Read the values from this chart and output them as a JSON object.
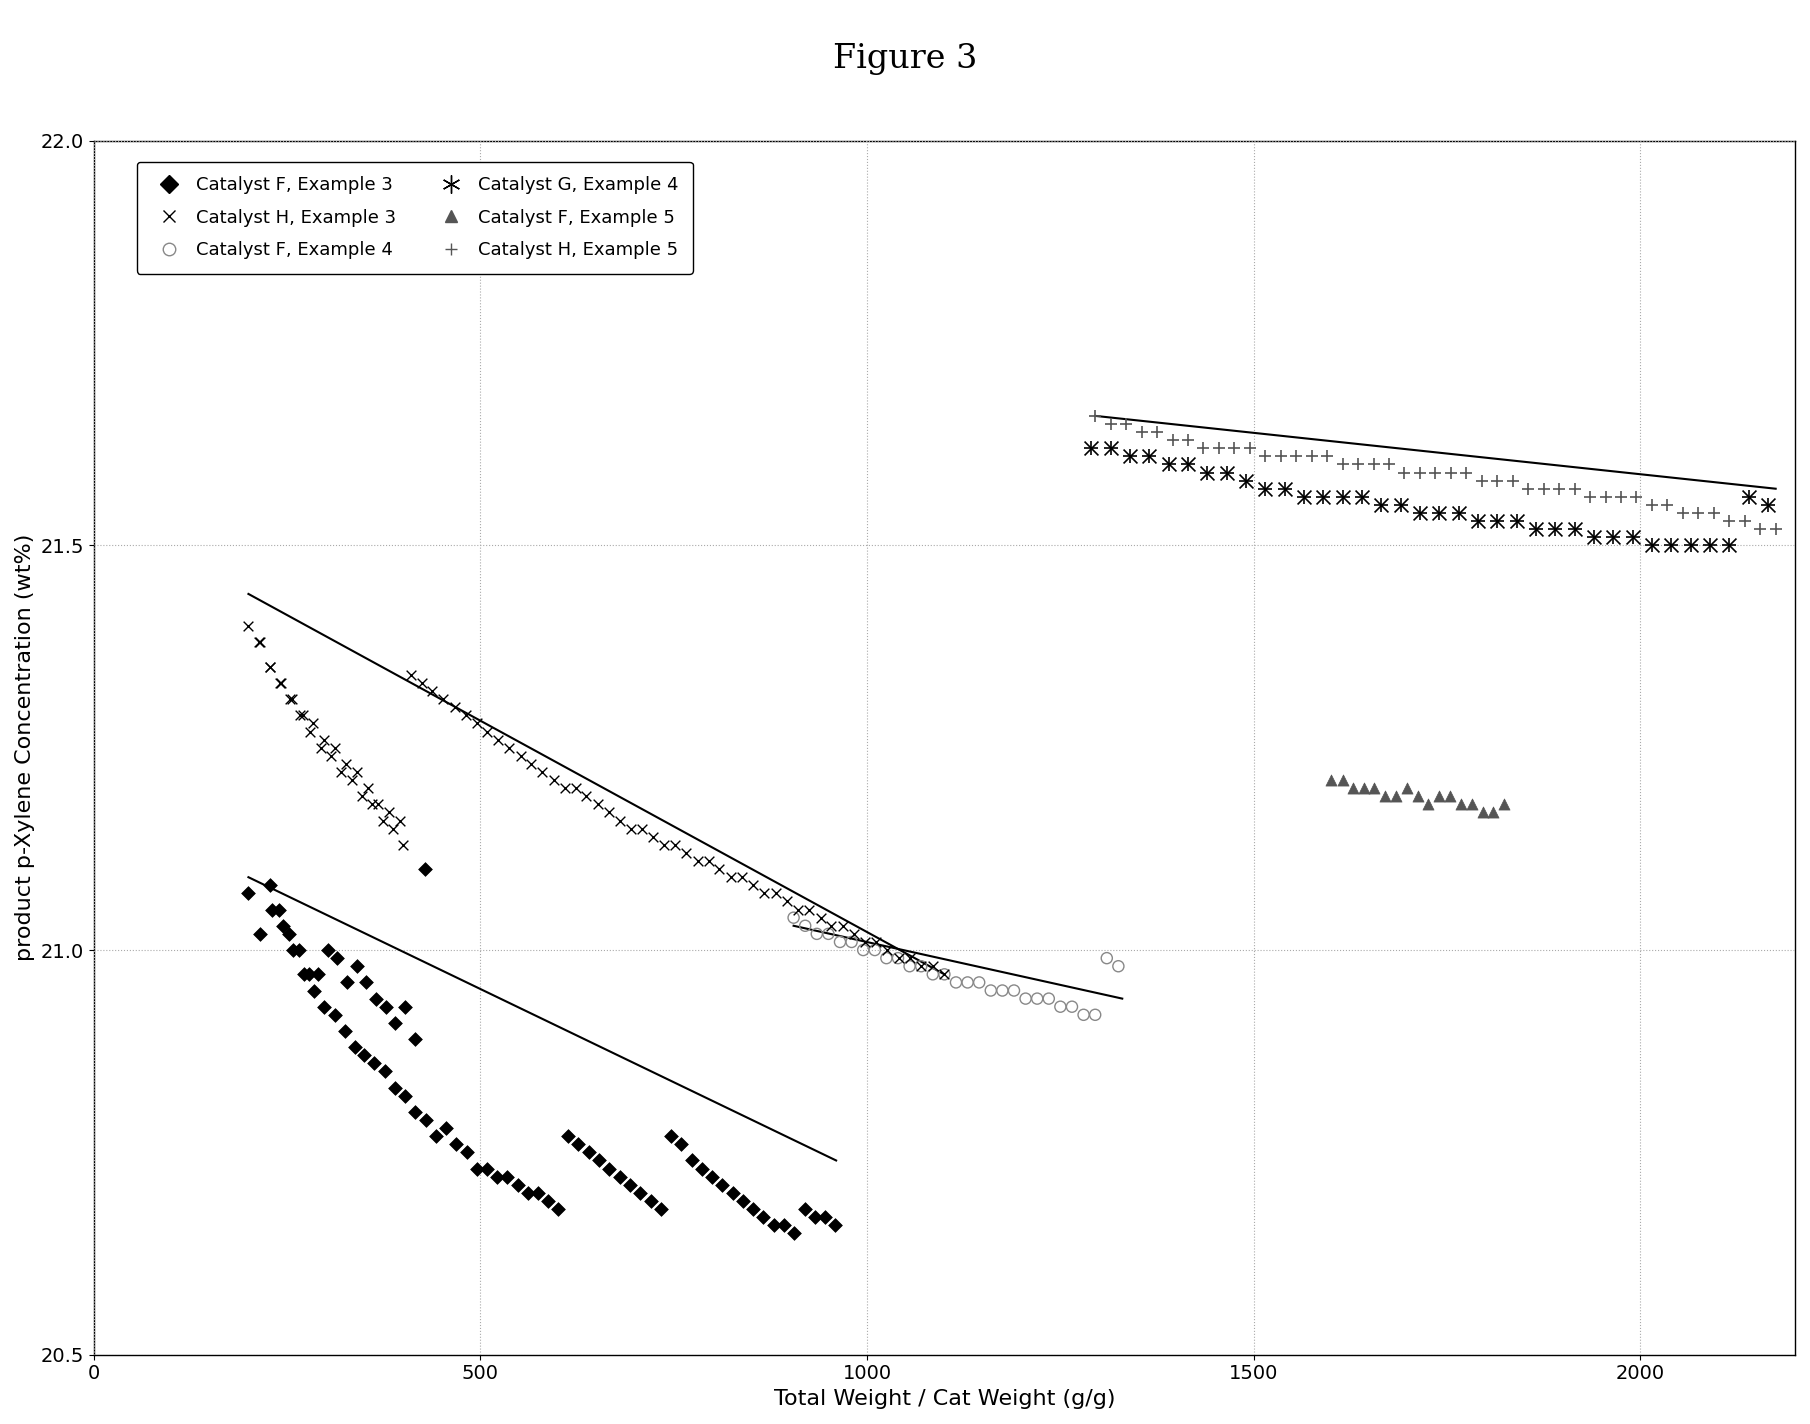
{
  "title": "Figure 3",
  "xlabel": "Total Weight / Cat Weight (g/g)",
  "ylabel": "product p-Xylene Concentration (wt%)",
  "xlim": [
    0,
    2200
  ],
  "ylim": [
    20.5,
    22.0
  ],
  "xticks": [
    0,
    500,
    1000,
    1500,
    2000
  ],
  "yticks": [
    20.5,
    21.0,
    21.5,
    22.0
  ],
  "background_color": "#ffffff",
  "catalyst_F_ex3": {
    "x": [
      200,
      215,
      228,
      240,
      252,
      265,
      278,
      290,
      303,
      315,
      328,
      340,
      352,
      365,
      378,
      390,
      403,
      415,
      428,
      230,
      245,
      258,
      272,
      285,
      298,
      312,
      325,
      338,
      350,
      363,
      376,
      389,
      402,
      416,
      429,
      442,
      456,
      469,
      482,
      496,
      509,
      522,
      535,
      548,
      562,
      575,
      588,
      600,
      613,
      626,
      640,
      653,
      666,
      680,
      693,
      706,
      720,
      733,
      746,
      760,
      773,
      786,
      800,
      813,
      826,
      840,
      853,
      866,
      880,
      893,
      906,
      920,
      933,
      946,
      958
    ],
    "y": [
      21.07,
      21.02,
      21.08,
      21.05,
      21.02,
      21.0,
      20.97,
      20.97,
      21.0,
      20.99,
      20.96,
      20.98,
      20.96,
      20.94,
      20.93,
      20.91,
      20.93,
      20.89,
      21.1,
      21.05,
      21.03,
      21.0,
      20.97,
      20.95,
      20.93,
      20.92,
      20.9,
      20.88,
      20.87,
      20.86,
      20.85,
      20.83,
      20.82,
      20.8,
      20.79,
      20.77,
      20.78,
      20.76,
      20.75,
      20.73,
      20.73,
      20.72,
      20.72,
      20.71,
      20.7,
      20.7,
      20.69,
      20.68,
      20.77,
      20.76,
      20.75,
      20.74,
      20.73,
      20.72,
      20.71,
      20.7,
      20.69,
      20.68,
      20.77,
      20.76,
      20.74,
      20.73,
      20.72,
      20.71,
      20.7,
      20.69,
      20.68,
      20.67,
      20.66,
      20.66,
      20.65,
      20.68,
      20.67,
      20.67,
      20.66
    ],
    "color": "#000000",
    "marker": "D",
    "markersize": 7,
    "label": "Catalyst F, Example 3"
  },
  "catalyst_F_ex4": {
    "x": [
      905,
      920,
      935,
      950,
      965,
      980,
      995,
      1010,
      1025,
      1040,
      1055,
      1070,
      1085,
      1100,
      1115,
      1130,
      1145,
      1160,
      1175,
      1190,
      1205,
      1220,
      1235,
      1250,
      1265,
      1280,
      1295,
      1310,
      1325
    ],
    "y": [
      21.04,
      21.03,
      21.02,
      21.02,
      21.01,
      21.01,
      21.0,
      21.0,
      20.99,
      20.99,
      20.98,
      20.98,
      20.97,
      20.97,
      20.96,
      20.96,
      20.96,
      20.95,
      20.95,
      20.95,
      20.94,
      20.94,
      20.94,
      20.93,
      20.93,
      20.92,
      20.92,
      20.99,
      20.98
    ],
    "color": "#888888",
    "marker": "o",
    "markersize": 8,
    "fillstyle": "none",
    "label": "Catalyst F, Example 4"
  },
  "catalyst_F_ex5": {
    "x": [
      1600,
      1615,
      1628,
      1642,
      1656,
      1670,
      1684,
      1698,
      1712,
      1726,
      1740,
      1754,
      1768,
      1782,
      1796,
      1810,
      1824
    ],
    "y": [
      21.21,
      21.21,
      21.2,
      21.2,
      21.2,
      21.19,
      21.19,
      21.2,
      21.19,
      21.18,
      21.19,
      21.19,
      21.18,
      21.18,
      21.17,
      21.17,
      21.18
    ],
    "color": "#555555",
    "marker": "^",
    "markersize": 8,
    "label": "Catalyst F, Example 5"
  },
  "catalyst_H_ex3": {
    "x": [
      200,
      215,
      228,
      241,
      254,
      267,
      280,
      294,
      307,
      320,
      334,
      347,
      360,
      374,
      387,
      400,
      214,
      228,
      242,
      256,
      270,
      284,
      298,
      312,
      326,
      340,
      354,
      368,
      382,
      396,
      410,
      424,
      438,
      452,
      467,
      481,
      495,
      509,
      523,
      537,
      552,
      566,
      580,
      595,
      609,
      623,
      637,
      652,
      666,
      680,
      695,
      709,
      723,
      738,
      752,
      766,
      781,
      795,
      809,
      824,
      838,
      853,
      867,
      882,
      896,
      911,
      925,
      940,
      954,
      969,
      983,
      997,
      1012,
      1026,
      1041,
      1056,
      1070,
      1085,
      1099
    ],
    "y": [
      21.4,
      21.38,
      21.35,
      21.33,
      21.31,
      21.29,
      21.27,
      21.25,
      21.24,
      21.22,
      21.21,
      21.19,
      21.18,
      21.16,
      21.15,
      21.13,
      21.38,
      21.35,
      21.33,
      21.31,
      21.29,
      21.28,
      21.26,
      21.25,
      21.23,
      21.22,
      21.2,
      21.18,
      21.17,
      21.16,
      21.34,
      21.33,
      21.32,
      21.31,
      21.3,
      21.29,
      21.28,
      21.27,
      21.26,
      21.25,
      21.24,
      21.23,
      21.22,
      21.21,
      21.2,
      21.2,
      21.19,
      21.18,
      21.17,
      21.16,
      21.15,
      21.15,
      21.14,
      21.13,
      21.13,
      21.12,
      21.11,
      21.11,
      21.1,
      21.09,
      21.09,
      21.08,
      21.07,
      21.07,
      21.06,
      21.05,
      21.05,
      21.04,
      21.03,
      21.03,
      21.02,
      21.01,
      21.01,
      21.0,
      20.99,
      20.99,
      20.98,
      20.98,
      20.97
    ],
    "color": "#000000",
    "marker": "x",
    "markersize": 7,
    "label": "Catalyst H, Example 3"
  },
  "catalyst_G_ex4": {
    "x": [
      1290,
      1315,
      1340,
      1365,
      1390,
      1415,
      1440,
      1465,
      1490,
      1515,
      1540,
      1565,
      1590,
      1615,
      1640,
      1665,
      1690,
      1715,
      1740,
      1765,
      1790,
      1815,
      1840,
      1865,
      1890,
      1915,
      1940,
      1965,
      1990,
      2015,
      2040,
      2065,
      2090,
      2115,
      2140,
      2165
    ],
    "y": [
      21.62,
      21.62,
      21.61,
      21.61,
      21.6,
      21.6,
      21.59,
      21.59,
      21.58,
      21.57,
      21.57,
      21.56,
      21.56,
      21.56,
      21.56,
      21.55,
      21.55,
      21.54,
      21.54,
      21.54,
      21.53,
      21.53,
      21.53,
      21.52,
      21.52,
      21.52,
      21.51,
      21.51,
      21.51,
      21.5,
      21.5,
      21.5,
      21.5,
      21.5,
      21.56,
      21.55
    ],
    "color": "#000000",
    "marker": "x",
    "markersize": 9,
    "extra_marker": true,
    "label": "Catalyst G, Example 4"
  },
  "catalyst_H_ex5": {
    "x": [
      1295,
      1315,
      1335,
      1355,
      1375,
      1395,
      1415,
      1435,
      1455,
      1475,
      1495,
      1515,
      1535,
      1555,
      1575,
      1595,
      1615,
      1635,
      1655,
      1675,
      1695,
      1715,
      1735,
      1755,
      1775,
      1795,
      1815,
      1835,
      1855,
      1875,
      1895,
      1915,
      1935,
      1955,
      1975,
      1995,
      2015,
      2035,
      2055,
      2075,
      2095,
      2115,
      2135,
      2155,
      2175
    ],
    "y": [
      21.66,
      21.65,
      21.65,
      21.64,
      21.64,
      21.63,
      21.63,
      21.62,
      21.62,
      21.62,
      21.62,
      21.61,
      21.61,
      21.61,
      21.61,
      21.61,
      21.6,
      21.6,
      21.6,
      21.6,
      21.59,
      21.59,
      21.59,
      21.59,
      21.59,
      21.58,
      21.58,
      21.58,
      21.57,
      21.57,
      21.57,
      21.57,
      21.56,
      21.56,
      21.56,
      21.56,
      21.55,
      21.55,
      21.54,
      21.54,
      21.54,
      21.53,
      21.53,
      21.52,
      21.52
    ],
    "color": "#555555",
    "marker": "+",
    "markersize": 9,
    "label": "Catalyst H, Example 5"
  },
  "trendlines": [
    {
      "x": [
        200,
        960
      ],
      "y": [
        21.09,
        20.74
      ],
      "color": "#000000",
      "lw": 1.5
    },
    {
      "x": [
        200,
        1100
      ],
      "y": [
        21.44,
        20.97
      ],
      "color": "#000000",
      "lw": 1.5
    },
    {
      "x": [
        905,
        1330
      ],
      "y": [
        21.03,
        20.94
      ],
      "color": "#000000",
      "lw": 1.5
    },
    {
      "x": [
        1295,
        2175
      ],
      "y": [
        21.66,
        21.57
      ],
      "color": "#000000",
      "lw": 1.5
    }
  ],
  "legend_entries": [
    {
      "label": "Catalyst F, Example 3",
      "marker": "D",
      "color": "#000000",
      "fillstyle": "full",
      "ms": 9
    },
    {
      "label": "Catalyst H, Example 3",
      "marker": "x",
      "color": "#000000",
      "fillstyle": "full",
      "ms": 9
    },
    {
      "label": "Catalyst F, Example 4",
      "marker": "o",
      "color": "#888888",
      "fillstyle": "none",
      "ms": 9
    },
    {
      "label": "Catalyst G, Example 4",
      "marker": "x",
      "color": "#000000",
      "fillstyle": "full",
      "ms": 11,
      "extra": true
    },
    {
      "label": "Catalyst F, Example 5",
      "marker": "^",
      "color": "#555555",
      "fillstyle": "full",
      "ms": 9
    },
    {
      "label": "Catalyst H, Example 5",
      "marker": "+",
      "color": "#555555",
      "fillstyle": "full",
      "ms": 9
    }
  ]
}
